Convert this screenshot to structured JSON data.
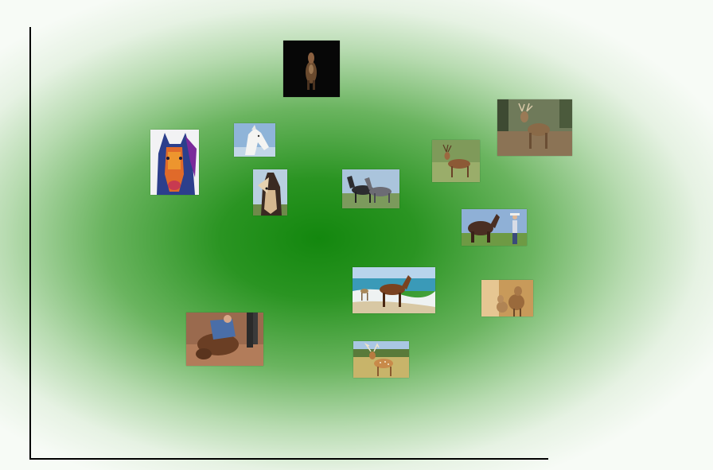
{
  "plot": {
    "title": "",
    "axes": {
      "x_axis": "line",
      "y_axis": "line"
    },
    "colors": {
      "center": "#13870e",
      "edge": "#f7fbf6",
      "axis": "#000000"
    }
  },
  "thumbnails": [
    {
      "id": "horse-dark-background",
      "subject": "horse",
      "icon": "horse-icon"
    },
    {
      "id": "deer-buck-field",
      "subject": "deer",
      "icon": "deer-icon"
    },
    {
      "id": "horse-painting",
      "subject": "horse",
      "icon": "horse-icon"
    },
    {
      "id": "white-horse",
      "subject": "horse",
      "icon": "horse-icon"
    },
    {
      "id": "deer-stag-grass",
      "subject": "deer",
      "icon": "deer-icon"
    },
    {
      "id": "horse-closeup",
      "subject": "horse",
      "icon": "horse-icon"
    },
    {
      "id": "two-horses",
      "subject": "horse",
      "icon": "horse-icon"
    },
    {
      "id": "horse-and-cowboy",
      "subject": "horse",
      "icon": "horse-icon"
    },
    {
      "id": "horses-on-beach",
      "subject": "horse",
      "icon": "horse-icon"
    },
    {
      "id": "deer-doe-fawn",
      "subject": "deer",
      "icon": "deer-icon"
    },
    {
      "id": "horse-rider-fallen",
      "subject": "horse",
      "icon": "horse-icon"
    },
    {
      "id": "fallow-deer-field",
      "subject": "deer",
      "icon": "deer-icon"
    }
  ]
}
